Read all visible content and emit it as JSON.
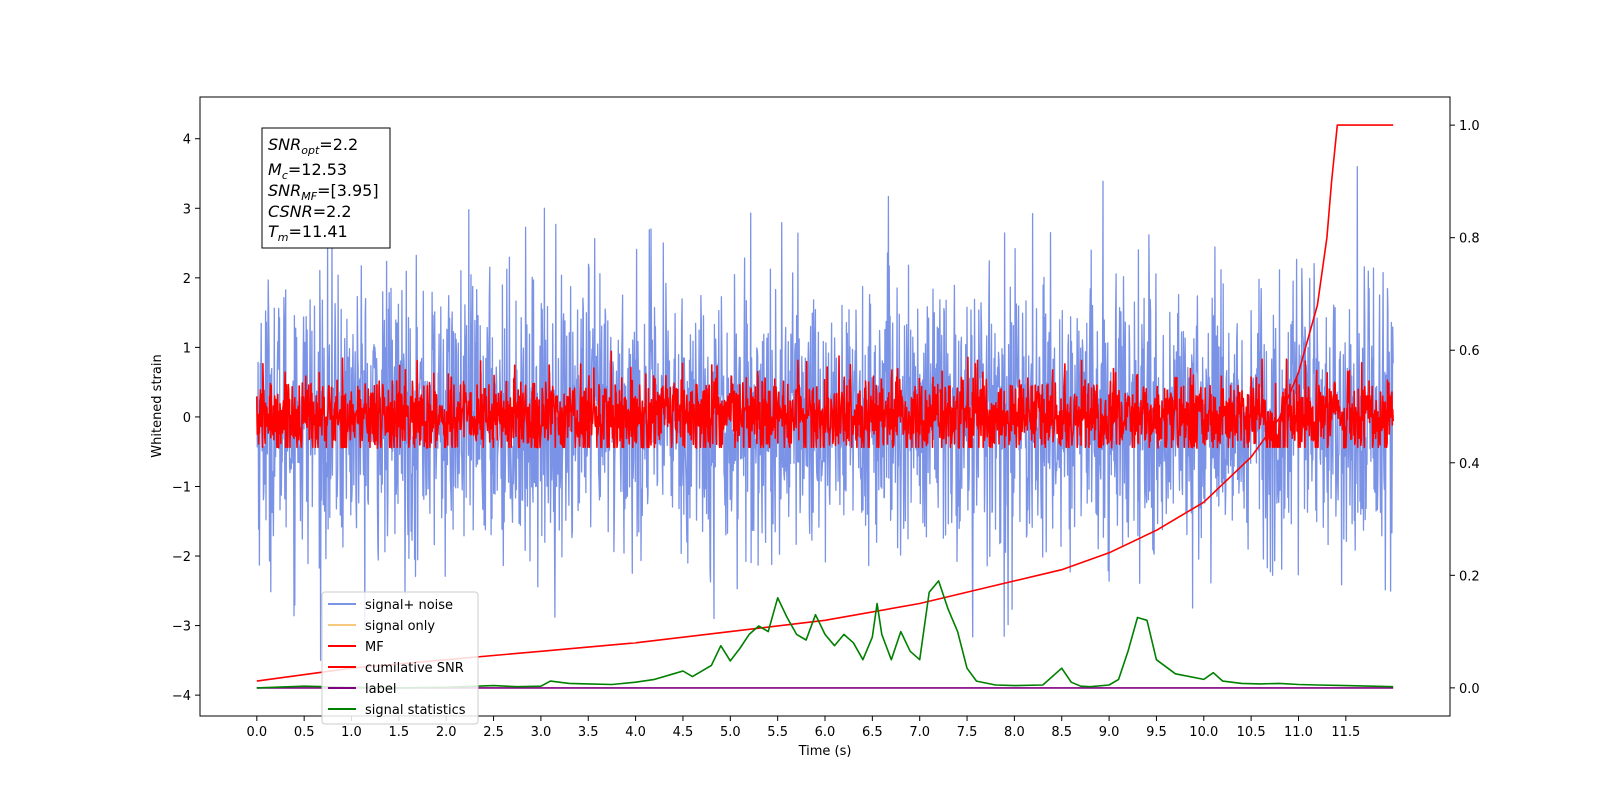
{
  "chart_data": {
    "type": "line",
    "xlabel": "Time (s)",
    "ylabel": "Whitened strain",
    "xlim": [
      -0.6,
      12.6
    ],
    "ylim": [
      -4.3,
      4.6
    ],
    "y2lim": [
      -0.05,
      1.05
    ],
    "x_ticks": [
      "0.0",
      "0.5",
      "1.0",
      "1.5",
      "2.0",
      "2.5",
      "3.0",
      "3.5",
      "4.0",
      "4.5",
      "5.0",
      "5.5",
      "6.0",
      "6.5",
      "7.0",
      "7.5",
      "8.0",
      "8.5",
      "9.0",
      "9.5",
      "10.0",
      "10.5",
      "11.0",
      "11.5"
    ],
    "y_ticks": [
      "4",
      "3",
      "2",
      "1",
      "0",
      "−1",
      "−2",
      "−3",
      "−4"
    ],
    "y2_ticks": [
      "1.0",
      "0.8",
      "0.6",
      "0.4",
      "0.2",
      "0.0"
    ],
    "annotation": {
      "snr_opt": {
        "base": "SNR",
        "sub": "opt",
        "value": "=2.2"
      },
      "mc": {
        "base": "M",
        "sub": "c",
        "value": "=12.53"
      },
      "snr_mf": {
        "base": "SNR",
        "sub": "MF",
        "value": "=[3.95]"
      },
      "csnr": {
        "base": "CSNR",
        "sub": "",
        "value": "=2.2"
      },
      "tm": {
        "base": "T",
        "sub": "m",
        "value": "=11.41"
      }
    },
    "legend": {
      "placement": "lower-left",
      "entries": [
        "signal+ noise",
        "signal only",
        "MF",
        "cumilative SNR",
        "label",
        "signal statistics"
      ]
    },
    "colors": {
      "signal_noise": "#7b93e6",
      "signal_only": "#f7c97f",
      "mf": "#ff0000",
      "cumulative_snr": "#ff0000",
      "label": "#800080",
      "signal_statistics": "#008000"
    },
    "series": [
      {
        "key": "signal_noise",
        "axis": "left",
        "x_range": [
          0,
          12
        ],
        "noise_std": 1.0,
        "spike_max": 4.18,
        "spike_min": -3.9
      },
      {
        "key": "mf",
        "axis": "left",
        "x_range": [
          0,
          12
        ],
        "noise_std": 0.3,
        "spike_max": 1.0,
        "spike_min": -0.45
      },
      {
        "key": "label",
        "axis": "right",
        "x": [
          0,
          12
        ],
        "y": [
          0.0,
          0.0
        ]
      },
      {
        "key": "cumulative_snr",
        "axis": "right",
        "x": [
          0.0,
          1.0,
          2.0,
          3.0,
          4.0,
          5.0,
          6.0,
          7.0,
          8.0,
          8.5,
          9.0,
          9.5,
          10.0,
          10.5,
          10.8,
          11.0,
          11.2,
          11.3,
          11.35,
          11.41,
          12.0
        ],
        "y": [
          0.012,
          0.035,
          0.05,
          0.065,
          0.08,
          0.1,
          0.12,
          0.15,
          0.19,
          0.21,
          0.24,
          0.28,
          0.33,
          0.41,
          0.48,
          0.56,
          0.68,
          0.8,
          0.9,
          1.0,
          1.0
        ]
      },
      {
        "key": "signal_statistics",
        "axis": "right",
        "x": [
          0.0,
          0.5,
          1.0,
          1.5,
          2.0,
          2.5,
          2.75,
          3.0,
          3.1,
          3.3,
          3.5,
          3.75,
          4.0,
          4.2,
          4.4,
          4.5,
          4.6,
          4.8,
          4.9,
          5.0,
          5.1,
          5.2,
          5.3,
          5.4,
          5.5,
          5.6,
          5.7,
          5.8,
          5.9,
          6.0,
          6.1,
          6.2,
          6.3,
          6.4,
          6.5,
          6.55,
          6.6,
          6.7,
          6.8,
          6.9,
          7.0,
          7.1,
          7.2,
          7.3,
          7.4,
          7.5,
          7.6,
          7.8,
          8.0,
          8.3,
          8.5,
          8.6,
          8.7,
          8.8,
          9.0,
          9.1,
          9.2,
          9.3,
          9.4,
          9.5,
          9.7,
          10.0,
          10.1,
          10.2,
          10.4,
          10.6,
          10.8,
          11.0,
          11.2,
          11.5,
          12.0
        ],
        "y": [
          0.0,
          0.003,
          0.001,
          0.0,
          0.001,
          0.004,
          0.002,
          0.003,
          0.012,
          0.008,
          0.007,
          0.006,
          0.01,
          0.015,
          0.025,
          0.03,
          0.02,
          0.04,
          0.075,
          0.048,
          0.07,
          0.095,
          0.11,
          0.1,
          0.16,
          0.125,
          0.095,
          0.085,
          0.13,
          0.095,
          0.075,
          0.095,
          0.08,
          0.05,
          0.09,
          0.15,
          0.095,
          0.05,
          0.1,
          0.065,
          0.05,
          0.17,
          0.19,
          0.14,
          0.1,
          0.035,
          0.012,
          0.005,
          0.004,
          0.005,
          0.035,
          0.01,
          0.003,
          0.002,
          0.005,
          0.015,
          0.065,
          0.125,
          0.12,
          0.05,
          0.025,
          0.015,
          0.027,
          0.012,
          0.008,
          0.007,
          0.008,
          0.006,
          0.005,
          0.004,
          0.002
        ]
      }
    ]
  }
}
